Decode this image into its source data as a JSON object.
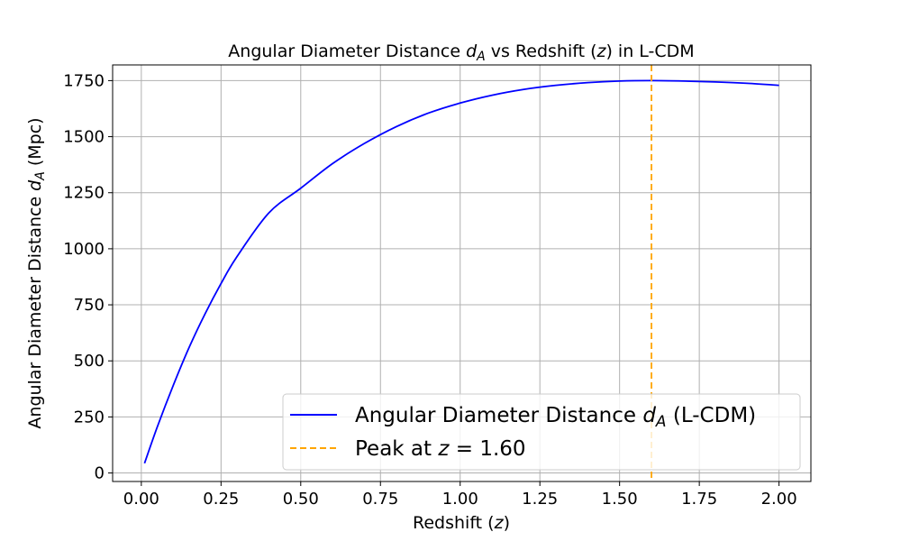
{
  "chart_data": {
    "type": "line",
    "title": {
      "main": "Angular Diameter Distance ",
      "sym": "d",
      "sub": "A",
      "post": " vs Redshift (",
      "zsym": "z",
      "end": ") in L-CDM"
    },
    "xlabel": {
      "main": "Redshift (",
      "sym": "z",
      "end": ")"
    },
    "ylabel": {
      "main": "Angular Diameter Distance ",
      "sym": "d",
      "sub": "A",
      "end": " (Mpc)"
    },
    "xlim": [
      -0.09,
      2.1
    ],
    "ylim": [
      -38,
      1820
    ],
    "xticks": [
      0.0,
      0.25,
      0.5,
      0.75,
      1.0,
      1.25,
      1.5,
      1.75,
      2.0
    ],
    "xtick_labels": [
      "0.00",
      "0.25",
      "0.50",
      "0.75",
      "1.00",
      "1.25",
      "1.50",
      "1.75",
      "2.00"
    ],
    "yticks": [
      0,
      250,
      500,
      750,
      1000,
      1250,
      1500,
      1750
    ],
    "ytick_labels": [
      "0",
      "250",
      "500",
      "750",
      "1000",
      "1250",
      "1500",
      "1750"
    ],
    "grid": true,
    "legend_position": "lower-right",
    "series": [
      {
        "name": {
          "main": "Angular Diameter Distance ",
          "sym": "d",
          "sub": "A",
          "end": " (L-CDM)"
        },
        "color": "#0000ff",
        "x": [
          0.01,
          0.05,
          0.1,
          0.15,
          0.2,
          0.25,
          0.3,
          0.4,
          0.5,
          0.6,
          0.7,
          0.8,
          0.9,
          1.0,
          1.1,
          1.2,
          1.3,
          1.4,
          1.5,
          1.6,
          1.7,
          1.8,
          1.9,
          2.0
        ],
        "y": [
          43,
          205,
          390,
          560,
          710,
          845,
          965,
          1160,
          1270,
          1380,
          1470,
          1545,
          1605,
          1650,
          1685,
          1711,
          1729,
          1741,
          1748,
          1750,
          1748,
          1744,
          1738,
          1729
        ]
      }
    ],
    "annotations": [
      {
        "type": "vline",
        "x": 1.6,
        "color": "#ffa500",
        "dashed": true,
        "label": {
          "main": "Peak at ",
          "sym": "z",
          "end": " = 1.60"
        }
      }
    ]
  }
}
